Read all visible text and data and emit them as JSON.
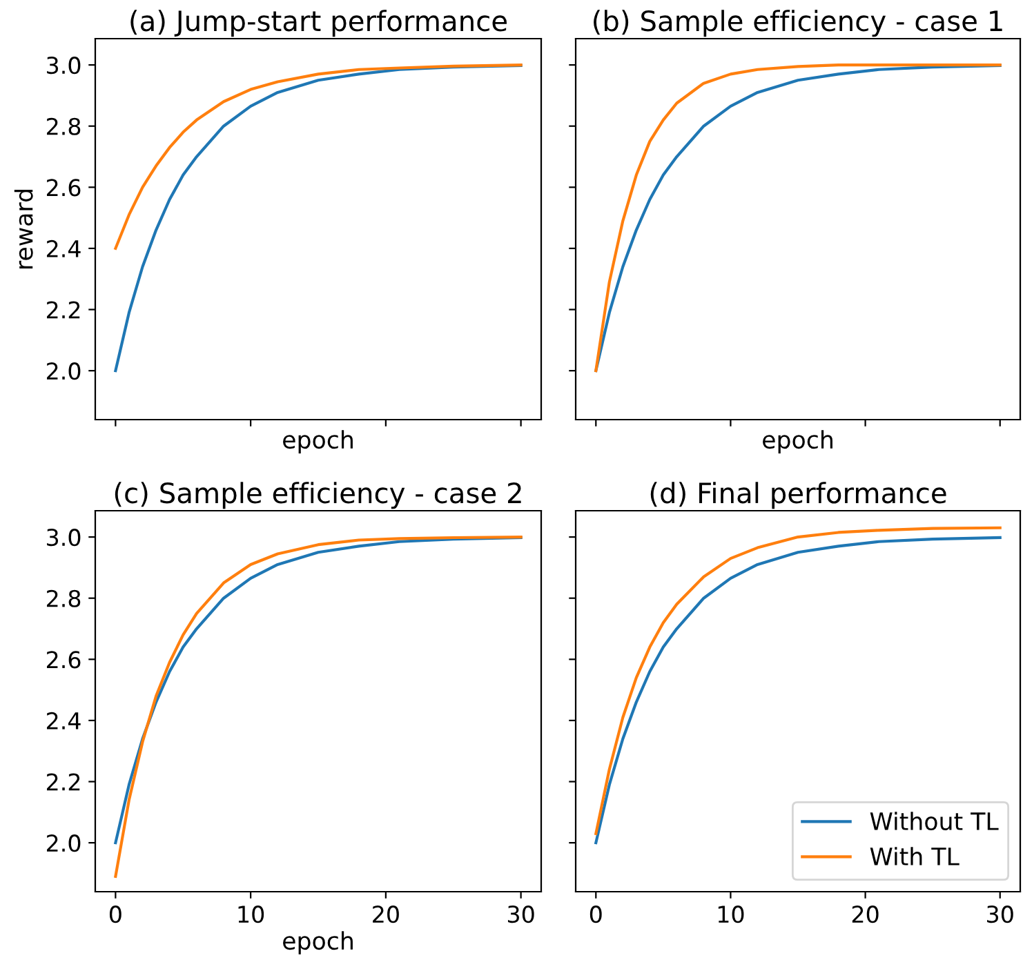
{
  "chart_data": [
    {
      "type": "line",
      "title": "(a) Jump-start performance",
      "xlabel": "epoch",
      "ylabel": "reward",
      "xlim": [
        -1.5,
        31.5
      ],
      "ylim": [
        1.84,
        3.086
      ],
      "xticks": [
        {
          "value": 0,
          "label": null
        },
        {
          "value": 10,
          "label": null
        },
        {
          "value": 20,
          "label": null
        },
        {
          "value": 30,
          "label": null
        }
      ],
      "yticks": [
        {
          "value": 2,
          "label": "2.0"
        },
        2.2,
        2.4,
        2.6,
        2.8,
        {
          "value": 3,
          "label": "3.0"
        }
      ],
      "tick_labels": "y",
      "legend": false,
      "series": [
        {
          "color": "#1f77b4",
          "x": [
            0,
            1,
            2,
            3,
            4,
            5,
            6,
            8,
            10,
            12,
            15,
            18,
            21,
            25,
            30
          ],
          "values": [
            2.0,
            2.19,
            2.34,
            2.46,
            2.56,
            2.64,
            2.7,
            2.8,
            2.865,
            2.91,
            2.95,
            2.97,
            2.985,
            2.993,
            2.998
          ]
        },
        {
          "color": "#ff7f0e",
          "x": [
            0,
            1,
            2,
            3,
            4,
            5,
            6,
            8,
            10,
            12,
            15,
            18,
            21,
            25,
            30
          ],
          "values": [
            2.4,
            2.51,
            2.6,
            2.67,
            2.73,
            2.78,
            2.82,
            2.88,
            2.92,
            2.945,
            2.97,
            2.985,
            2.99,
            2.996,
            3.0
          ]
        }
      ]
    },
    {
      "type": "line",
      "title": "(b) Sample efficiency - case 1",
      "xlabel": "epoch",
      "xlim": [
        -1.5,
        31.5
      ],
      "ylim": [
        1.84,
        3.086
      ],
      "xticks": [
        {
          "value": 0,
          "label": null
        },
        {
          "value": 10,
          "label": null
        },
        {
          "value": 20,
          "label": null
        },
        {
          "value": 30,
          "label": null
        }
      ],
      "yticks": [
        {
          "value": 2.0,
          "label": null
        },
        {
          "value": 2.2,
          "label": null
        },
        {
          "value": 2.4,
          "label": null
        },
        {
          "value": 2.6,
          "label": null
        },
        {
          "value": 2.8,
          "label": null
        },
        {
          "value": 3.0,
          "label": null
        }
      ],
      "tick_labels": false,
      "legend": false,
      "series": [
        {
          "color": "#1f77b4",
          "x": [
            0,
            1,
            2,
            3,
            4,
            5,
            6,
            8,
            10,
            12,
            15,
            18,
            21,
            25,
            30
          ],
          "values": [
            2.0,
            2.19,
            2.34,
            2.46,
            2.56,
            2.64,
            2.7,
            2.8,
            2.865,
            2.91,
            2.95,
            2.97,
            2.985,
            2.993,
            2.998
          ]
        },
        {
          "color": "#ff7f0e",
          "x": [
            0,
            1,
            2,
            3,
            4,
            5,
            6,
            8,
            10,
            12,
            15,
            18,
            21,
            25,
            30
          ],
          "values": [
            2.0,
            2.29,
            2.49,
            2.64,
            2.75,
            2.82,
            2.875,
            2.94,
            2.97,
            2.985,
            2.995,
            3.0,
            3.0,
            3.0,
            3.0
          ]
        }
      ]
    },
    {
      "type": "line",
      "title": "(c) Sample efficiency - case 2",
      "xlabel": "epoch",
      "xlim": [
        -1.5,
        31.5
      ],
      "ylim": [
        1.84,
        3.086
      ],
      "xticks": [
        0,
        10,
        20,
        30
      ],
      "yticks": [
        {
          "value": 2,
          "label": "2.0"
        },
        2.2,
        2.4,
        2.6,
        2.8,
        {
          "value": 3,
          "label": "3.0"
        }
      ],
      "legend": false,
      "series": [
        {
          "color": "#1f77b4",
          "x": [
            0,
            1,
            2,
            3,
            4,
            5,
            6,
            8,
            10,
            12,
            15,
            18,
            21,
            25,
            30
          ],
          "values": [
            2.0,
            2.19,
            2.34,
            2.46,
            2.56,
            2.64,
            2.7,
            2.8,
            2.865,
            2.91,
            2.95,
            2.97,
            2.985,
            2.993,
            2.998
          ]
        },
        {
          "color": "#ff7f0e",
          "x": [
            0,
            1,
            2,
            3,
            4,
            5,
            6,
            8,
            10,
            12,
            15,
            18,
            21,
            25,
            30
          ],
          "values": [
            1.89,
            2.14,
            2.33,
            2.48,
            2.59,
            2.68,
            2.75,
            2.85,
            2.91,
            2.945,
            2.975,
            2.99,
            2.995,
            2.998,
            3.0
          ]
        }
      ]
    },
    {
      "type": "line",
      "title": "(d) Final performance",
      "xlim": [
        -1.5,
        31.5
      ],
      "ylim": [
        1.84,
        3.086
      ],
      "xticks": [
        0,
        10,
        20,
        30
      ],
      "yticks": [
        {
          "value": 2.0,
          "label": null
        },
        {
          "value": 2.2,
          "label": null
        },
        {
          "value": 2.4,
          "label": null
        },
        {
          "value": 2.6,
          "label": null
        },
        {
          "value": 2.8,
          "label": null
        },
        {
          "value": 3.0,
          "label": null
        }
      ],
      "tick_labels": "x",
      "legend": "bottom right",
      "series": [
        {
          "name": "Without TL",
          "color": "#1f77b4",
          "x": [
            0,
            1,
            2,
            3,
            4,
            5,
            6,
            8,
            10,
            12,
            15,
            18,
            21,
            25,
            30
          ],
          "values": [
            2.0,
            2.19,
            2.34,
            2.46,
            2.56,
            2.64,
            2.7,
            2.8,
            2.865,
            2.91,
            2.95,
            2.97,
            2.985,
            2.993,
            2.998
          ]
        },
        {
          "name": "With TL",
          "color": "#ff7f0e",
          "x": [
            0,
            1,
            2,
            3,
            4,
            5,
            6,
            8,
            10,
            12,
            15,
            18,
            21,
            25,
            30
          ],
          "values": [
            2.03,
            2.24,
            2.41,
            2.54,
            2.64,
            2.72,
            2.78,
            2.87,
            2.93,
            2.965,
            3.0,
            3.015,
            3.022,
            3.028,
            3.03
          ]
        }
      ]
    }
  ]
}
